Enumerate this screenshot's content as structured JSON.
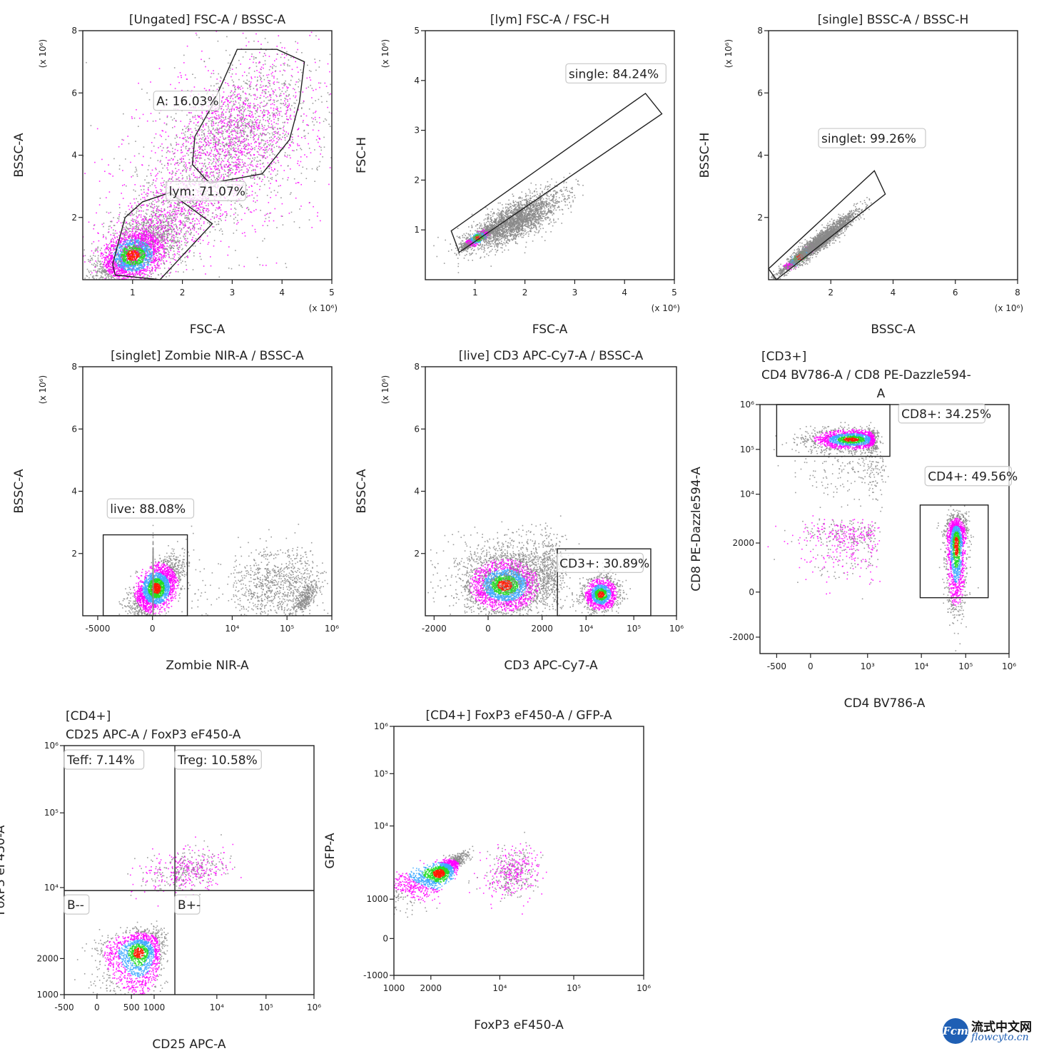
{
  "chart_data": [
    {
      "type": "scatter",
      "id": "p1",
      "title_lines": [
        "[Ungated] FSC-A / BSSC-A"
      ],
      "xlabel": "FSC-A",
      "ylabel": "BSSC-A",
      "xscale": "linear",
      "yscale": "linear",
      "xlim": [
        0,
        5
      ],
      "ylim": [
        0,
        8
      ],
      "x_multiplier": "(x 10⁶)",
      "y_multiplier": "(x 10⁶)",
      "xticks": [
        {
          "v": 1,
          "t": "1"
        },
        {
          "v": 2,
          "t": "2"
        },
        {
          "v": 3,
          "t": "3"
        },
        {
          "v": 4,
          "t": "4"
        },
        {
          "v": 5,
          "t": "5"
        }
      ],
      "yticks": [
        {
          "v": 2,
          "t": "2"
        },
        {
          "v": 4,
          "t": "4"
        },
        {
          "v": 6,
          "t": "6"
        },
        {
          "v": 8,
          "t": "8"
        }
      ],
      "populations": [
        {
          "cx": 1.0,
          "cy": 0.8,
          "sx": 0.35,
          "sy": 0.45,
          "rho": 0.5,
          "n": 2600,
          "dense": true
        },
        {
          "cx": 1.5,
          "cy": 1.6,
          "sx": 0.6,
          "sy": 0.8,
          "rho": 0.5,
          "n": 1500,
          "dense": false
        },
        {
          "cx": 3.0,
          "cy": 4.6,
          "sx": 0.75,
          "sy": 1.2,
          "rho": 0.5,
          "n": 2200,
          "dense": false
        },
        {
          "cx": 3.0,
          "cy": 4.0,
          "sx": 1.2,
          "sy": 2.0,
          "rho": 0.3,
          "n": 900,
          "dense": false
        }
      ],
      "gates": [
        {
          "name": "A",
          "label": "A: 16.03%",
          "percent": 16.03,
          "shape": "polygon",
          "points": [
            [
              3.1,
              7.4
            ],
            [
              3.9,
              7.4
            ],
            [
              4.45,
              7.0
            ],
            [
              4.35,
              5.7
            ],
            [
              4.15,
              4.5
            ],
            [
              3.6,
              3.4
            ],
            [
              2.55,
              3.1
            ],
            [
              2.2,
              3.7
            ],
            [
              2.25,
              4.6
            ],
            [
              2.6,
              5.6
            ]
          ],
          "label_at": [
            1.45,
            5.6
          ]
        },
        {
          "name": "lym",
          "label": "lym: 71.07%",
          "percent": 71.07,
          "shape": "polygon",
          "points": [
            [
              0.85,
              2.0
            ],
            [
              1.2,
              2.5
            ],
            [
              1.75,
              2.8
            ],
            [
              2.6,
              1.8
            ],
            [
              1.55,
              0.0
            ],
            [
              0.65,
              0.15
            ],
            [
              0.6,
              0.5
            ]
          ],
          "label_at": [
            1.7,
            2.7
          ]
        }
      ]
    },
    {
      "type": "scatter",
      "id": "p2",
      "title_lines": [
        "[lym] FSC-A / FSC-H"
      ],
      "xlabel": "FSC-A",
      "ylabel": "FSC-H",
      "xscale": "linear",
      "yscale": "linear",
      "xlim": [
        0,
        5
      ],
      "ylim": [
        0,
        5
      ],
      "x_multiplier": "(x 10⁶)",
      "y_multiplier": "(x 10⁶)",
      "xticks": [
        {
          "v": 1,
          "t": "1"
        },
        {
          "v": 2,
          "t": "2"
        },
        {
          "v": 3,
          "t": "3"
        },
        {
          "v": 4,
          "t": "4"
        },
        {
          "v": 5,
          "t": "5"
        }
      ],
      "yticks": [
        {
          "v": 1,
          "t": "1"
        },
        {
          "v": 2,
          "t": "2"
        },
        {
          "v": 3,
          "t": "3"
        },
        {
          "v": 4,
          "t": "4"
        },
        {
          "v": 5,
          "t": "5"
        }
      ],
      "populations": [
        {
          "cx": 1.05,
          "cy": 0.85,
          "sx": 0.15,
          "sy": 0.1,
          "rho": 0.9,
          "n": 1200,
          "dense": true
        },
        {
          "cx": 1.8,
          "cy": 1.2,
          "sx": 0.45,
          "sy": 0.28,
          "rho": 0.75,
          "n": 2600,
          "dense": false,
          "gray": true
        }
      ],
      "gates": [
        {
          "name": "single",
          "label": "single: 84.24%",
          "percent": 84.24,
          "shape": "polygon",
          "points": [
            [
              0.52,
              0.98
            ],
            [
              4.42,
              3.74
            ],
            [
              4.75,
              3.33
            ],
            [
              0.68,
              0.55
            ]
          ],
          "label_at": [
            2.85,
            4.05
          ]
        }
      ]
    },
    {
      "type": "scatter",
      "id": "p3",
      "title_lines": [
        "[single] BSSC-A / BSSC-H"
      ],
      "xlabel": "BSSC-A",
      "ylabel": "BSSC-H",
      "xscale": "linear",
      "yscale": "linear",
      "xlim": [
        0,
        8
      ],
      "ylim": [
        0,
        8
      ],
      "x_multiplier": "(x 10⁶)",
      "y_multiplier": "(x 10⁶)",
      "xticks": [
        {
          "v": 2,
          "t": "2"
        },
        {
          "v": 4,
          "t": "4"
        },
        {
          "v": 6,
          "t": "6"
        },
        {
          "v": 8,
          "t": "8"
        }
      ],
      "yticks": [
        {
          "v": 2,
          "t": "2"
        },
        {
          "v": 4,
          "t": "4"
        },
        {
          "v": 6,
          "t": "6"
        },
        {
          "v": 8,
          "t": "8"
        }
      ],
      "populations": [
        {
          "cx": 1.0,
          "cy": 0.75,
          "sx": 0.35,
          "sy": 0.28,
          "rho": 0.97,
          "n": 900,
          "dense": true
        },
        {
          "cx": 1.7,
          "cy": 1.3,
          "sx": 0.55,
          "sy": 0.45,
          "rho": 0.95,
          "n": 2200,
          "dense": false,
          "gray": true
        }
      ],
      "gates": [
        {
          "name": "singlet",
          "label": "singlet: 99.26%",
          "percent": 99.26,
          "shape": "polygon",
          "points": [
            [
              0.0,
              0.35
            ],
            [
              3.4,
              3.5
            ],
            [
              3.75,
              2.75
            ],
            [
              0.25,
              0.0
            ]
          ],
          "label_at": [
            1.65,
            4.4
          ]
        }
      ]
    },
    {
      "type": "scatter",
      "id": "p4",
      "title_lines": [
        "[singlet] Zombie NIR-A / BSSC-A"
      ],
      "xlabel": "Zombie NIR-A",
      "ylabel": "BSSC-A",
      "xscale": "biex",
      "yscale": "linear",
      "xlim": [
        -8000,
        1000000
      ],
      "ylim": [
        0,
        8
      ],
      "y_multiplier": "(x 10⁶)",
      "xticks": [
        {
          "v": -5000,
          "t": "-5000"
        },
        {
          "v": 0,
          "t": "0"
        },
        {
          "v": 10000,
          "t": "10⁴"
        },
        {
          "v": 100000,
          "t": "10⁵"
        },
        {
          "v": 1000000,
          "t": "10⁶"
        }
      ],
      "yticks": [
        {
          "v": 2,
          "t": "2"
        },
        {
          "v": 4,
          "t": "4"
        },
        {
          "v": 6,
          "t": "6"
        },
        {
          "v": 8,
          "t": "8"
        }
      ],
      "populations": [
        {
          "cx": 300,
          "cy": 0.9,
          "sx": 1100,
          "sy": 0.45,
          "rho": 0.6,
          "n": 2600,
          "dense": true
        },
        {
          "cx": 5000,
          "cy": 1.1,
          "sx": 4000,
          "sy": 0.6,
          "rho": 0.2,
          "n": 1400,
          "dense": false,
          "gray": true,
          "logx": true
        },
        {
          "cx": 60000,
          "cy": 1.0,
          "sx": 0.45,
          "sy": 0.6,
          "rho": 0.1,
          "n": 900,
          "dense": false,
          "gray": true,
          "logx": true
        },
        {
          "cx": 250000,
          "cy": 0.6,
          "sx": 0.15,
          "sy": 0.25,
          "rho": 0.7,
          "n": 300,
          "dense": false,
          "gray": true,
          "logx": true
        }
      ],
      "gates": [
        {
          "name": "live",
          "label": "live: 88.08%",
          "percent": 88.08,
          "shape": "rect",
          "points": [
            [
              -4500,
              0.0
            ],
            [
              3200,
              2.6
            ]
          ],
          "label_at": [
            -4000,
            3.3
          ]
        }
      ]
    },
    {
      "type": "scatter",
      "id": "p5",
      "title_lines": [
        "[live] CD3 APC-Cy7-A / BSSC-A"
      ],
      "xlabel": "CD3 APC-Cy7-A",
      "ylabel": "BSSC-A",
      "xscale": "biex",
      "yscale": "linear",
      "xlim": [
        -2800,
        1000000
      ],
      "ylim": [
        0,
        8
      ],
      "y_multiplier": "(x 10⁶)",
      "xticks": [
        {
          "v": -2000,
          "t": "-2000"
        },
        {
          "v": 0,
          "t": "0"
        },
        {
          "v": 2000,
          "t": "2000"
        },
        {
          "v": 10000,
          "t": "10⁴"
        },
        {
          "v": 100000,
          "t": "10⁵"
        },
        {
          "v": 1000000,
          "t": "10⁶"
        }
      ],
      "yticks": [
        {
          "v": 2,
          "t": "2"
        },
        {
          "v": 4,
          "t": "4"
        },
        {
          "v": 6,
          "t": "6"
        },
        {
          "v": 8,
          "t": "8"
        }
      ],
      "populations": [
        {
          "cx": 600,
          "cy": 1.0,
          "sx": 700,
          "sy": 0.45,
          "rho": 0.1,
          "n": 2600,
          "dense": true
        },
        {
          "cx": 20000,
          "cy": 0.7,
          "sx": 0.18,
          "sy": 0.28,
          "rho": 0.1,
          "n": 1300,
          "dense": true,
          "logx": true
        },
        {
          "cx": 1500,
          "cy": 1.4,
          "sx": 1400,
          "sy": 0.6,
          "rho": 0.0,
          "n": 1200,
          "dense": false,
          "gray": true
        }
      ],
      "gates": [
        {
          "name": "CD3+",
          "label": "CD3+: 30.89%",
          "percent": 30.89,
          "shape": "rect",
          "points": [
            [
              3500,
              0.0
            ],
            [
              250000,
              2.15
            ]
          ],
          "label_at": [
            3600,
            1.55
          ]
        }
      ]
    },
    {
      "type": "scatter",
      "id": "p6",
      "title_lines": [
        "[CD3+]",
        "CD4 BV786-A / CD8 PE-Dazzle594-",
        "A"
      ],
      "xlabel": "CD4 BV786-A",
      "ylabel": "CD8 PE-Dazzle594-A",
      "xscale": "biex",
      "yscale": "biex",
      "xlim": [
        -800,
        1000000
      ],
      "ylim": [
        -2800,
        1000000
      ],
      "xticks": [
        {
          "v": -500,
          "t": "-500"
        },
        {
          "v": 0,
          "t": "0"
        },
        {
          "v": 1000,
          "t": "10³"
        },
        {
          "v": 10000,
          "t": "10⁴"
        },
        {
          "v": 100000,
          "t": "10⁵"
        },
        {
          "v": 1000000,
          "t": "10⁶"
        }
      ],
      "yticks": [
        {
          "v": -2000,
          "t": "-2000"
        },
        {
          "v": 0,
          "t": "0"
        },
        {
          "v": 2000,
          "t": "2000"
        },
        {
          "v": 10000,
          "t": "10⁴"
        },
        {
          "v": 100000,
          "t": "10⁵"
        },
        {
          "v": 1000000,
          "t": "10⁶"
        }
      ],
      "populations": [
        {
          "cx": 700,
          "cy": 170000,
          "sx": 350,
          "sy": 0.12,
          "rho": 0.0,
          "n": 1800,
          "dense": true,
          "logy": true
        },
        {
          "cx": 60000,
          "cy": 2000,
          "sx": 0.12,
          "sy": 1400,
          "rho": 0.0,
          "n": 1800,
          "dense": true,
          "logx": true
        },
        {
          "cx": 600,
          "cy": 2300,
          "sx": 400,
          "sy": 900,
          "rho": 0.0,
          "n": 500,
          "dense": false
        },
        {
          "cx": 900,
          "cy": 40000,
          "sx": 600,
          "sy": 0.35,
          "rho": 0.0,
          "n": 250,
          "dense": false,
          "gray": true,
          "logy": true
        }
      ],
      "gates": [
        {
          "name": "CD8+",
          "label": "CD8+: 34.25%",
          "percent": 34.25,
          "shape": "rect",
          "points": [
            [
              -500,
              70000
            ],
            [
              2600,
              1000000
            ]
          ],
          "label_at": [
            4000,
            500000
          ]
        },
        {
          "name": "CD4+",
          "label": "CD4+: 49.56%",
          "percent": 49.56,
          "shape": "rect",
          "points": [
            [
              9500,
              -250
            ],
            [
              330000,
              7000
            ]
          ],
          "label_at": [
            13000,
            20000
          ]
        }
      ]
    },
    {
      "type": "scatter",
      "id": "p7",
      "title_lines": [
        "[CD4+]",
        "CD25 APC-A / FoxP3 eF450-A"
      ],
      "xlabel": "CD25 APC-A",
      "ylabel": "FoxP3 eF450-A",
      "xscale": "biex",
      "yscale": "biexpos",
      "xlim": [
        -500,
        1000000
      ],
      "ylim": [
        1000,
        1000000
      ],
      "xticks": [
        {
          "v": -500,
          "t": "-500"
        },
        {
          "v": 0,
          "t": "0"
        },
        {
          "v": 500,
          "t": "500"
        },
        {
          "v": 1000,
          "t": "1000"
        },
        {
          "v": 10000,
          "t": "10⁴"
        },
        {
          "v": 100000,
          "t": "10⁵"
        },
        {
          "v": 1000000,
          "t": "10⁶"
        }
      ],
      "yticks": [
        {
          "v": 1000,
          "t": "1000"
        },
        {
          "v": 2000,
          "t": "2000"
        },
        {
          "v": 10000,
          "t": "10⁴"
        },
        {
          "v": 100000,
          "t": "10⁵"
        },
        {
          "v": 1000000,
          "t": "10⁶"
        }
      ],
      "populations": [
        {
          "cx": 650,
          "cy": 2300,
          "sx": 300,
          "sy": 700,
          "rho": 0.2,
          "n": 1800,
          "dense": true
        },
        {
          "cx": 3000,
          "cy": 17000,
          "sx": 0.35,
          "sy": 0.15,
          "rho": 0.3,
          "n": 500,
          "dense": false,
          "logx": true,
          "logy": true
        }
      ],
      "quadrant_split": {
        "x": 1800,
        "y": 9000
      },
      "gates": [
        {
          "name": "Teff",
          "label": "Teff: 7.14%",
          "percent": 7.14,
          "quadrant": "top-left"
        },
        {
          "name": "Treg",
          "label": "Treg: 10.58%",
          "percent": 10.58,
          "quadrant": "top-right"
        },
        {
          "name": "B--",
          "label": "B--",
          "quadrant": "bottom-left"
        },
        {
          "name": "B+-",
          "label": "B+-",
          "quadrant": "bottom-right"
        }
      ]
    },
    {
      "type": "scatter",
      "id": "p8",
      "title_lines": [
        "[CD4+] FoxP3 eF450-A / GFP-A"
      ],
      "xlabel": "FoxP3 eF450-A",
      "ylabel": "GFP-A",
      "xscale": "biexpos",
      "yscale": "biex",
      "xlim": [
        1000,
        1000000
      ],
      "ylim": [
        -1000,
        1000000
      ],
      "xticks": [
        {
          "v": 1000,
          "t": "1000"
        },
        {
          "v": 2000,
          "t": "2000"
        },
        {
          "v": 10000,
          "t": "10⁴"
        },
        {
          "v": 100000,
          "t": "10⁵"
        },
        {
          "v": 1000000,
          "t": "10⁶"
        }
      ],
      "yticks": [
        {
          "v": -1000,
          "t": "-1000"
        },
        {
          "v": 0,
          "t": "0"
        },
        {
          "v": 1000,
          "t": "1000"
        },
        {
          "v": 10000,
          "t": "10⁴"
        },
        {
          "v": 100000,
          "t": "10⁵"
        },
        {
          "v": 1000000,
          "t": "10⁶"
        }
      ],
      "populations": [
        {
          "cx": 2400,
          "cy": 2300,
          "sx": 900,
          "sy": 800,
          "rho": 0.85,
          "n": 1800,
          "dense": true
        },
        {
          "cx": 15000,
          "cy": 2300,
          "sx": 0.18,
          "sy": 0.18,
          "rho": 0.2,
          "n": 500,
          "dense": false,
          "logx": true,
          "logy": true
        }
      ],
      "gates": []
    }
  ],
  "watermark": {
    "logo_text": "Fcm",
    "name_cn": "流式中文网",
    "url": "flowcyto.cn"
  }
}
